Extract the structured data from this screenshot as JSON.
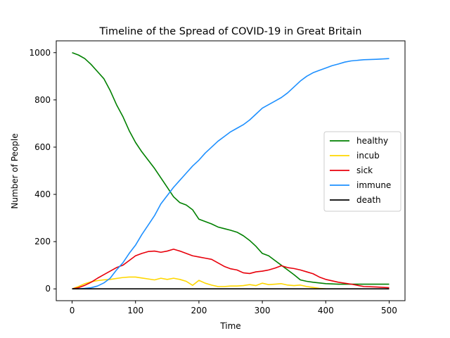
{
  "chart_data": {
    "type": "line",
    "title": "Timeline of the Spread of COVID-19 in Great Britain",
    "xlabel": "Time",
    "ylabel": "Number of People",
    "xlim": [
      -25,
      525
    ],
    "ylim": [
      -50,
      1050
    ],
    "xticks": [
      0,
      100,
      200,
      300,
      400,
      500
    ],
    "yticks": [
      0,
      200,
      400,
      600,
      800,
      1000
    ],
    "grid": false,
    "legend_position": "center-right",
    "series": [
      {
        "name": "healthy",
        "color": "#008000",
        "x": [
          0,
          10,
          20,
          30,
          40,
          50,
          60,
          70,
          80,
          90,
          100,
          110,
          120,
          130,
          140,
          150,
          160,
          170,
          180,
          190,
          200,
          210,
          220,
          230,
          240,
          250,
          260,
          270,
          280,
          290,
          300,
          310,
          320,
          330,
          340,
          350,
          360,
          370,
          380,
          390,
          400,
          420,
          440,
          460,
          480,
          500
        ],
        "y": [
          1000,
          990,
          975,
          950,
          920,
          890,
          840,
          780,
          730,
          670,
          620,
          580,
          545,
          510,
          470,
          430,
          390,
          365,
          355,
          335,
          295,
          285,
          275,
          262,
          255,
          248,
          240,
          225,
          205,
          180,
          150,
          140,
          120,
          100,
          80,
          60,
          38,
          32,
          28,
          25,
          22,
          20,
          20,
          20,
          20,
          20
        ]
      },
      {
        "name": "incub",
        "color": "#FFD700",
        "x": [
          0,
          10,
          20,
          30,
          40,
          50,
          60,
          70,
          80,
          90,
          100,
          110,
          120,
          130,
          140,
          150,
          160,
          170,
          180,
          190,
          200,
          210,
          220,
          230,
          240,
          250,
          260,
          270,
          280,
          290,
          300,
          310,
          320,
          330,
          340,
          350,
          360,
          370,
          380,
          390,
          400
        ],
        "y": [
          0,
          10,
          22,
          30,
          35,
          38,
          40,
          44,
          48,
          50,
          50,
          46,
          42,
          38,
          45,
          40,
          45,
          40,
          32,
          15,
          36,
          24,
          16,
          10,
          10,
          12,
          12,
          14,
          18,
          14,
          24,
          18,
          20,
          22,
          16,
          14,
          16,
          10,
          6,
          2,
          0
        ]
      },
      {
        "name": "sick",
        "color": "#E8000B",
        "x": [
          0,
          10,
          20,
          30,
          40,
          50,
          60,
          70,
          80,
          90,
          100,
          110,
          120,
          130,
          140,
          150,
          160,
          170,
          180,
          190,
          200,
          210,
          220,
          230,
          240,
          250,
          260,
          270,
          280,
          290,
          300,
          310,
          320,
          330,
          340,
          350,
          360,
          370,
          380,
          390,
          400,
          420,
          440,
          460,
          480,
          500
        ],
        "y": [
          0,
          5,
          15,
          28,
          45,
          60,
          75,
          90,
          100,
          120,
          140,
          150,
          158,
          160,
          155,
          160,
          168,
          160,
          150,
          140,
          135,
          130,
          125,
          110,
          95,
          85,
          80,
          68,
          65,
          72,
          75,
          80,
          88,
          98,
          90,
          86,
          80,
          72,
          64,
          50,
          40,
          28,
          20,
          10,
          8,
          5
        ]
      },
      {
        "name": "immune",
        "color": "#1E90FF",
        "x": [
          0,
          10,
          20,
          30,
          40,
          50,
          60,
          70,
          80,
          90,
          100,
          110,
          120,
          130,
          140,
          150,
          160,
          170,
          180,
          190,
          200,
          210,
          220,
          230,
          240,
          250,
          260,
          270,
          280,
          290,
          300,
          310,
          320,
          330,
          340,
          350,
          360,
          370,
          380,
          390,
          400,
          410,
          420,
          430,
          440,
          460,
          480,
          500
        ],
        "y": [
          0,
          0,
          2,
          5,
          12,
          25,
          45,
          80,
          110,
          150,
          185,
          230,
          270,
          310,
          360,
          395,
          430,
          460,
          490,
          520,
          545,
          575,
          600,
          625,
          645,
          665,
          680,
          695,
          715,
          740,
          765,
          780,
          795,
          810,
          830,
          855,
          880,
          900,
          915,
          925,
          935,
          945,
          952,
          960,
          965,
          970,
          972,
          975
        ]
      },
      {
        "name": "death",
        "color": "#000000",
        "x": [
          0,
          500
        ],
        "y": [
          0,
          0
        ]
      }
    ]
  }
}
